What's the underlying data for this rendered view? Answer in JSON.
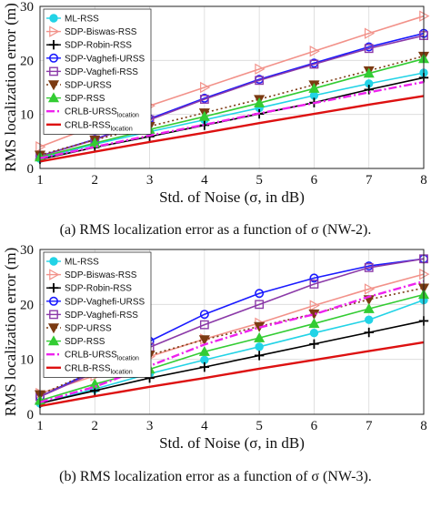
{
  "chart_data": [
    {
      "type": "line",
      "xlabel": "Std. of Noise (σ, in dB)",
      "ylabel": "RMS localization error (m)",
      "xlim": [
        1,
        8
      ],
      "ylim": [
        0,
        30
      ],
      "x": [
        1,
        2,
        3,
        4,
        5,
        6,
        7,
        8
      ],
      "xticks": [
        "1",
        "2",
        "3",
        "4",
        "5",
        "6",
        "7",
        "8"
      ],
      "yticks": [
        "0",
        "10",
        "20",
        "30"
      ],
      "grid": true,
      "legend_position": "top-left",
      "caption": "(a) RMS localization error as a function of σ (NW-2).",
      "series": [
        {
          "name": "ML-RSS",
          "color": "#22d3e6",
          "marker": "circle-filled",
          "dash": "solid",
          "values": [
            1.8,
            4.5,
            6.8,
            9.0,
            11.2,
            13.5,
            15.7,
            17.7
          ]
        },
        {
          "name": "SDP-Biswas-RSS",
          "color": "#f2928a",
          "marker": "triangle-right",
          "dash": "solid",
          "values": [
            4.0,
            7.9,
            11.6,
            15.0,
            18.4,
            21.7,
            25.0,
            28.2
          ]
        },
        {
          "name": "SDP-Robin-RSS",
          "color": "#000000",
          "marker": "plus",
          "dash": "solid",
          "values": [
            1.7,
            3.9,
            5.9,
            8.0,
            10.1,
            12.2,
            14.6,
            16.8
          ]
        },
        {
          "name": "SDP-Vaghefi-URSS",
          "color": "#1a1aff",
          "marker": "circle",
          "dash": "solid",
          "values": [
            2.3,
            5.4,
            9.2,
            13.0,
            16.5,
            19.5,
            22.5,
            25.0
          ]
        },
        {
          "name": "SDP-Vaghefi-RSS",
          "color": "#8b3aa8",
          "marker": "square",
          "dash": "solid",
          "values": [
            2.3,
            5.3,
            9.0,
            12.8,
            16.3,
            19.3,
            22.2,
            24.6
          ]
        },
        {
          "name": "SDP-URSS",
          "color": "#7b3a12",
          "marker": "triangle-down",
          "dash": "dotted",
          "values": [
            2.5,
            5.3,
            7.8,
            10.3,
            12.8,
            15.5,
            18.1,
            20.8
          ]
        },
        {
          "name": "SDP-RSS",
          "color": "#33cc33",
          "marker": "triangle-up",
          "dash": "solid",
          "values": [
            2.1,
            4.7,
            7.2,
            9.6,
            12.1,
            14.8,
            17.6,
            20.3
          ]
        },
        {
          "name": "CRLB-URSS",
          "subscript": "location",
          "color": "#ee22ee",
          "marker": "none",
          "dash": "dashdot",
          "values": [
            1.9,
            4.0,
            6.1,
            8.1,
            10.2,
            12.1,
            14.1,
            16.0
          ]
        },
        {
          "name": "CRLB-RSS",
          "subscript": "location",
          "color": "#dd1111",
          "marker": "none",
          "dash": "solid",
          "values": [
            1.3,
            3.1,
            4.9,
            6.6,
            8.4,
            10.1,
            11.8,
            13.4
          ]
        }
      ]
    },
    {
      "type": "line",
      "xlabel": "Std. of Noise (σ, in dB)",
      "ylabel": "RMS localization error (m)",
      "xlim": [
        1,
        8
      ],
      "ylim": [
        0,
        30
      ],
      "x": [
        1,
        2,
        3,
        4,
        5,
        6,
        7,
        8
      ],
      "xticks": [
        "1",
        "2",
        "3",
        "4",
        "5",
        "6",
        "7",
        "8"
      ],
      "yticks": [
        "0",
        "10",
        "20",
        "30"
      ],
      "grid": true,
      "legend_position": "top-left",
      "caption": "(b) RMS localization error as a function of σ (NW-3).",
      "series": [
        {
          "name": "ML-RSS",
          "color": "#22d3e6",
          "marker": "circle-filled",
          "dash": "solid",
          "values": [
            2.0,
            4.6,
            7.4,
            9.9,
            12.3,
            14.8,
            17.2,
            20.8
          ]
        },
        {
          "name": "SDP-Biswas-RSS",
          "color": "#f2928a",
          "marker": "triangle-right",
          "dash": "solid",
          "values": [
            3.8,
            7.0,
            10.5,
            13.7,
            16.6,
            19.8,
            22.8,
            25.5
          ]
        },
        {
          "name": "SDP-Robin-RSS",
          "color": "#000000",
          "marker": "plus",
          "dash": "solid",
          "values": [
            2.0,
            4.3,
            6.6,
            8.6,
            10.7,
            12.8,
            14.9,
            17.0
          ]
        },
        {
          "name": "SDP-Vaghefi-URSS",
          "color": "#1a1aff",
          "marker": "circle",
          "dash": "solid",
          "values": [
            3.2,
            8.0,
            13.3,
            18.2,
            22.0,
            24.8,
            27.0,
            28.3
          ]
        },
        {
          "name": "SDP-Vaghefi-RSS",
          "color": "#8b3aa8",
          "marker": "square",
          "dash": "solid",
          "values": [
            3.2,
            7.6,
            12.2,
            16.3,
            20.0,
            23.7,
            26.7,
            28.3
          ]
        },
        {
          "name": "SDP-URSS",
          "color": "#7b3a12",
          "marker": "triangle-down",
          "dash": "dotted",
          "values": [
            3.6,
            7.9,
            10.8,
            13.6,
            16.0,
            18.3,
            20.9,
            23.0
          ]
        },
        {
          "name": "SDP-RSS",
          "color": "#33cc33",
          "marker": "triangle-up",
          "dash": "solid",
          "values": [
            2.5,
            5.5,
            8.2,
            11.4,
            13.9,
            16.5,
            19.2,
            21.8
          ]
        },
        {
          "name": "CRLB-URSS",
          "subscript": "location",
          "color": "#ee22ee",
          "marker": "none",
          "dash": "dashdot",
          "values": [
            2.2,
            5.0,
            8.8,
            12.7,
            15.8,
            18.2,
            21.4,
            24.2
          ]
        },
        {
          "name": "CRLB-RSS",
          "subscript": "location",
          "color": "#dd1111",
          "marker": "none",
          "dash": "solid",
          "values": [
            1.5,
            3.3,
            5.0,
            6.6,
            8.3,
            9.9,
            11.5,
            13.1
          ]
        }
      ]
    }
  ]
}
